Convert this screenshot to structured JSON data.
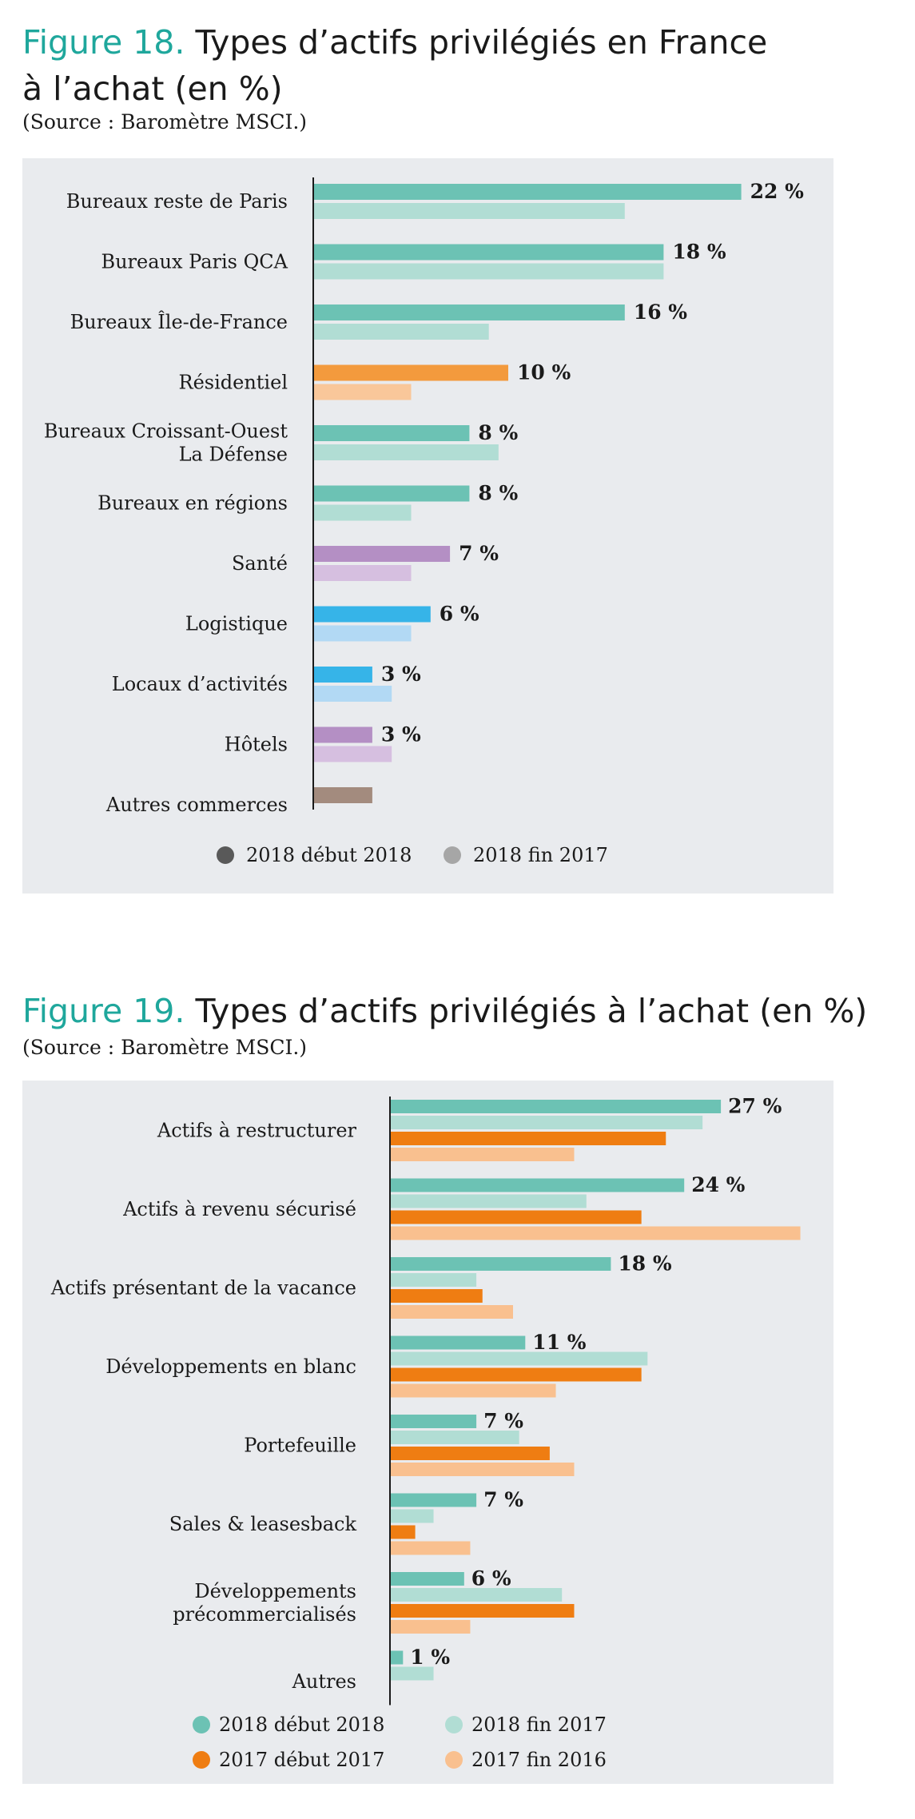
{
  "fig18": {
    "title_num": "Figure 18.",
    "title_line1": "Types d’actifs privilégiés en France",
    "title_line2": "à l’achat (en %)",
    "source": "(Source : Baromètre MSCI.)"
  },
  "fig19": {
    "title_num": "Figure 19.",
    "title_rest": "Types d’actifs privilégiés à l’achat (en %)",
    "source": "(Source : Baromètre MSCI.)"
  },
  "chart_data": [
    {
      "type": "bar",
      "orientation": "horizontal",
      "xlim": [
        0,
        25
      ],
      "categories": [
        [
          "Bureaux reste de Paris"
        ],
        [
          "Bureaux Paris QCA"
        ],
        [
          "Bureaux Île-de-France"
        ],
        [
          "Résidentiel"
        ],
        [
          "Bureaux Croissant-Ouest",
          "La Défense"
        ],
        [
          "Bureaux en régions"
        ],
        [
          "Santé"
        ],
        [
          "Logistique"
        ],
        [
          "Locaux d’activités"
        ],
        [
          "Hôtels"
        ],
        [
          "Autres commerces"
        ]
      ],
      "series": [
        {
          "name": "2018 début 2018",
          "values": [
            22,
            18,
            16,
            10,
            8,
            8,
            7,
            6,
            3,
            3,
            3
          ],
          "colors": [
            "#6cc2b4",
            "#6cc2b4",
            "#6cc2b4",
            "#f39a3d",
            "#6cc2b4",
            "#6cc2b4",
            "#b48fc4",
            "#36b4e8",
            "#36b4e8",
            "#b48fc4",
            "#a38b7e"
          ],
          "labels": [
            "22 %",
            "18 %",
            "16 %",
            "10 %",
            "8 %",
            "8 %",
            "7 %",
            "6 %",
            "3 %",
            "3 %",
            ""
          ]
        },
        {
          "name": "2018 fin 2017",
          "values": [
            16,
            18,
            9,
            5,
            9.5,
            5,
            5,
            5,
            4,
            4,
            null
          ],
          "colors": [
            "#b1ddd4",
            "#b1ddd4",
            "#b1ddd4",
            "#f9c79a",
            "#b1ddd4",
            "#b1ddd4",
            "#d6bfe0",
            "#b2d9f4",
            "#b2d9f4",
            "#d6bfe0",
            "#b1ddd4"
          ]
        }
      ],
      "legend": [
        {
          "label": "2018 début 2018",
          "color": "#595959"
        },
        {
          "label": "2018 fin 2017",
          "color": "#a6a6a6"
        }
      ],
      "legend_position": "bottom"
    },
    {
      "type": "bar",
      "orientation": "horizontal",
      "xlim": [
        0,
        34
      ],
      "categories": [
        [
          "Actifs à restructurer"
        ],
        [
          "Actifs à revenu sécurisé"
        ],
        [
          "Actifs présentant de la vacance"
        ],
        [
          "Développements en blanc"
        ],
        [
          "Portefeuille"
        ],
        [
          "Sales & leasesback"
        ],
        [
          "Développements",
          "précommercialisés"
        ],
        [
          "Autres"
        ]
      ],
      "series": [
        {
          "name": "2018 début 2018",
          "color": "#6cc2b4",
          "values": [
            27,
            24,
            18,
            11,
            7,
            7,
            6,
            1
          ],
          "labels": [
            "27 %",
            "24 %",
            "18 %",
            "11 %",
            "7 %",
            "7 %",
            "6 %",
            "1 %"
          ]
        },
        {
          "name": "2018 fin 2017",
          "color": "#b1ddd4",
          "values": [
            25.5,
            16,
            7,
            21,
            10.5,
            3.5,
            14,
            3.5
          ]
        },
        {
          "name": "2017 début 2017",
          "color": "#ef7d12",
          "values": [
            22.5,
            20.5,
            7.5,
            20.5,
            13,
            2,
            15,
            null
          ]
        },
        {
          "name": "2017 fin 2016",
          "color": "#f9c08f",
          "values": [
            15,
            33.5,
            10,
            13.5,
            15,
            6.5,
            6.5,
            null
          ]
        }
      ],
      "legend": [
        {
          "label": "2018 début 2018",
          "color": "#6cc2b4"
        },
        {
          "label": "2018 fin 2017",
          "color": "#b1ddd4"
        },
        {
          "label": "2017 début 2017",
          "color": "#ef7d12"
        },
        {
          "label": "2017 fin 2016",
          "color": "#f9c08f"
        }
      ],
      "legend_position": "bottom"
    }
  ]
}
